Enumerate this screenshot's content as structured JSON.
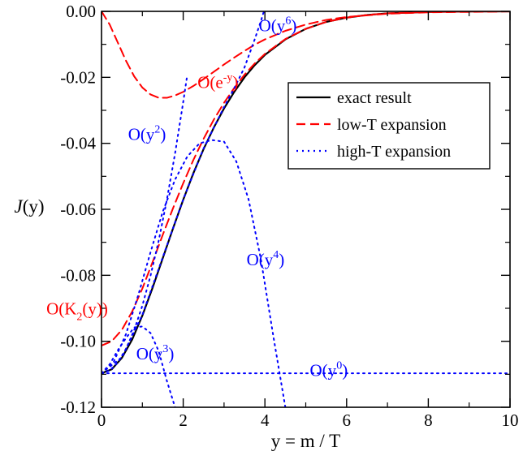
{
  "chart_data": {
    "type": "line",
    "title": "",
    "xlabel": "y = m / T",
    "ylabel_italic": "J",
    "ylabel_rest": "(y)",
    "xlim": [
      0,
      10
    ],
    "ylim": [
      -0.12,
      0.0
    ],
    "x_ticks": [
      0,
      2,
      4,
      6,
      8,
      10
    ],
    "x_tick_labels": [
      "0",
      "2",
      "4",
      "6",
      "8",
      "10"
    ],
    "y_ticks": [
      0.0,
      -0.02,
      -0.04,
      -0.06,
      -0.08,
      -0.1,
      -0.12
    ],
    "y_tick_labels": [
      "0.00",
      "-0.02",
      "-0.04",
      "-0.06",
      "-0.08",
      "-0.10",
      "-0.12"
    ],
    "grid": false,
    "legend_position": "top-right",
    "legend": [
      {
        "label": "exact result",
        "style": "solid",
        "color": "#000000"
      },
      {
        "label": "low-T expansion",
        "style": "dashed",
        "color": "#ff0000"
      },
      {
        "label": "high-T expansion",
        "style": "dotted",
        "color": "#0000ff"
      }
    ],
    "series": [
      {
        "name": "exact result",
        "color": "#000000",
        "style": "solid",
        "x": [
          0,
          0.25,
          0.5,
          0.75,
          1.0,
          1.25,
          1.5,
          1.75,
          2.0,
          2.25,
          2.5,
          2.75,
          3.0,
          3.25,
          3.5,
          3.75,
          4.0,
          4.5,
          5.0,
          5.5,
          6.0,
          6.5,
          7.0,
          8.0,
          9.0,
          10.0
        ],
        "y": [
          -0.1097,
          -0.1085,
          -0.105,
          -0.0995,
          -0.0922,
          -0.0838,
          -0.0748,
          -0.0658,
          -0.0571,
          -0.049,
          -0.0417,
          -0.0352,
          -0.0294,
          -0.0244,
          -0.02,
          -0.0163,
          -0.0132,
          -0.0085,
          -0.0053,
          -0.0032,
          -0.0019,
          -0.0011,
          -0.0006,
          -0.0002,
          -5e-05,
          -1e-05
        ]
      },
      {
        "name": "low-T expansion",
        "color": "#ff0000",
        "style": "dashed",
        "x": [
          0,
          0.25,
          0.5,
          0.75,
          1.0,
          1.25,
          1.5,
          1.75,
          2.0,
          2.25,
          2.5,
          2.75,
          3.0,
          3.25,
          3.5,
          3.75,
          4.0,
          4.5,
          5.0,
          5.5,
          6.0,
          6.5,
          7.0,
          8.0,
          9.0,
          10.0
        ],
        "y": [
          -0.1013,
          -0.1,
          -0.0965,
          -0.091,
          -0.084,
          -0.076,
          -0.0677,
          -0.0597,
          -0.0521,
          -0.045,
          -0.0386,
          -0.0328,
          -0.0277,
          -0.0232,
          -0.0192,
          -0.0158,
          -0.0129,
          -0.0084,
          -0.0053,
          -0.0032,
          -0.0019,
          -0.0011,
          -0.0006,
          -0.0002,
          -5e-05,
          -1e-05
        ]
      },
      {
        "name": "low-T O(e^-y)",
        "color": "#ff0000",
        "style": "dashed",
        "x": [
          0,
          0.2,
          0.4,
          0.6,
          0.8,
          1.0,
          1.2,
          1.4,
          1.6,
          1.8,
          2.0,
          2.25,
          2.5,
          2.75,
          3.0,
          3.25,
          3.5,
          3.75,
          4.0,
          4.5,
          5.0,
          5.5,
          6.0,
          7.0,
          8.0,
          10.0
        ],
        "y": [
          0.0,
          -0.004,
          -0.0095,
          -0.015,
          -0.0197,
          -0.0231,
          -0.0252,
          -0.0262,
          -0.0262,
          -0.0255,
          -0.0244,
          -0.0226,
          -0.0205,
          -0.0183,
          -0.0161,
          -0.014,
          -0.012,
          -0.0101,
          -0.0085,
          -0.0059,
          -0.004,
          -0.0026,
          -0.0017,
          -0.0007,
          -0.0003,
          -4e-05
        ]
      },
      {
        "name": "high-T O(y^0)",
        "color": "#0000ff",
        "style": "dotted",
        "x": [
          0,
          10
        ],
        "y": [
          -0.1097,
          -0.1097
        ]
      },
      {
        "name": "high-T O(y^2)",
        "color": "#0000ff",
        "style": "dotted",
        "x": [
          0,
          0.2,
          0.4,
          0.6,
          0.8,
          1.0,
          1.2,
          1.4,
          1.6,
          1.8,
          2.0,
          2.1
        ],
        "y": [
          -0.1097,
          -0.1089,
          -0.1064,
          -0.1023,
          -0.0966,
          -0.0892,
          -0.0801,
          -0.0695,
          -0.0571,
          -0.0431,
          -0.0275,
          -0.0192
        ]
      },
      {
        "name": "high-T O(y^3)",
        "color": "#0000ff",
        "style": "dotted",
        "x": [
          0,
          0.2,
          0.4,
          0.6,
          0.8,
          1.0,
          1.2,
          1.4,
          1.6,
          1.8
        ],
        "y": [
          -0.1097,
          -0.107,
          -0.1027,
          -0.099,
          -0.0958,
          -0.0955,
          -0.0975,
          -0.103,
          -0.112,
          -0.12
        ]
      },
      {
        "name": "high-T O(y^4)",
        "color": "#0000ff",
        "style": "dotted",
        "x": [
          0,
          0.3,
          0.6,
          0.9,
          1.2,
          1.5,
          1.8,
          2.1,
          2.4,
          2.7,
          3.0,
          3.3,
          3.6,
          3.9,
          4.2,
          4.5
        ],
        "y": [
          -0.1097,
          -0.1062,
          -0.0978,
          -0.086,
          -0.073,
          -0.0607,
          -0.051,
          -0.044,
          -0.04,
          -0.039,
          -0.0395,
          -0.0455,
          -0.057,
          -0.075,
          -0.098,
          -0.12
        ]
      },
      {
        "name": "high-T O(y^6)",
        "color": "#0000ff",
        "style": "dotted",
        "x": [
          0,
          0.5,
          1.0,
          1.5,
          2.0,
          2.5,
          3.0,
          3.25,
          3.5,
          3.75,
          3.9,
          4.0,
          4.1
        ],
        "y": [
          -0.1097,
          -0.1048,
          -0.092,
          -0.0745,
          -0.057,
          -0.0415,
          -0.029,
          -0.0233,
          -0.017,
          -0.0085,
          -0.003,
          0.001,
          0.004
        ]
      }
    ],
    "annotations": [
      {
        "base": "O(e",
        "sup": "-y",
        "tail": ")",
        "color": "#ff0000",
        "x": 2.35,
        "y": -0.0232
      },
      {
        "base": "O(y",
        "sup": "6",
        "tail": ")",
        "color": "#0000ff",
        "x": 3.85,
        "y": -0.006
      },
      {
        "base": "O(y",
        "sup": "2",
        "tail": ")",
        "color": "#0000ff",
        "x": 0.65,
        "y": -0.039
      },
      {
        "base": "O(y",
        "sup": "4",
        "tail": ")",
        "color": "#0000ff",
        "x": 3.55,
        "y": -0.077
      },
      {
        "base": "O(K",
        "sub": "2",
        "tail": "(y))",
        "color": "#ff0000",
        "x": -1.35,
        "y": -0.0918
      },
      {
        "base": "O(y",
        "sup": "3",
        "tail": ")",
        "color": "#0000ff",
        "x": 0.85,
        "y": -0.1055
      },
      {
        "base": "O(y",
        "sup": "0",
        "tail": ")",
        "color": "#0000ff",
        "x": 5.1,
        "y": -0.1105
      }
    ]
  }
}
